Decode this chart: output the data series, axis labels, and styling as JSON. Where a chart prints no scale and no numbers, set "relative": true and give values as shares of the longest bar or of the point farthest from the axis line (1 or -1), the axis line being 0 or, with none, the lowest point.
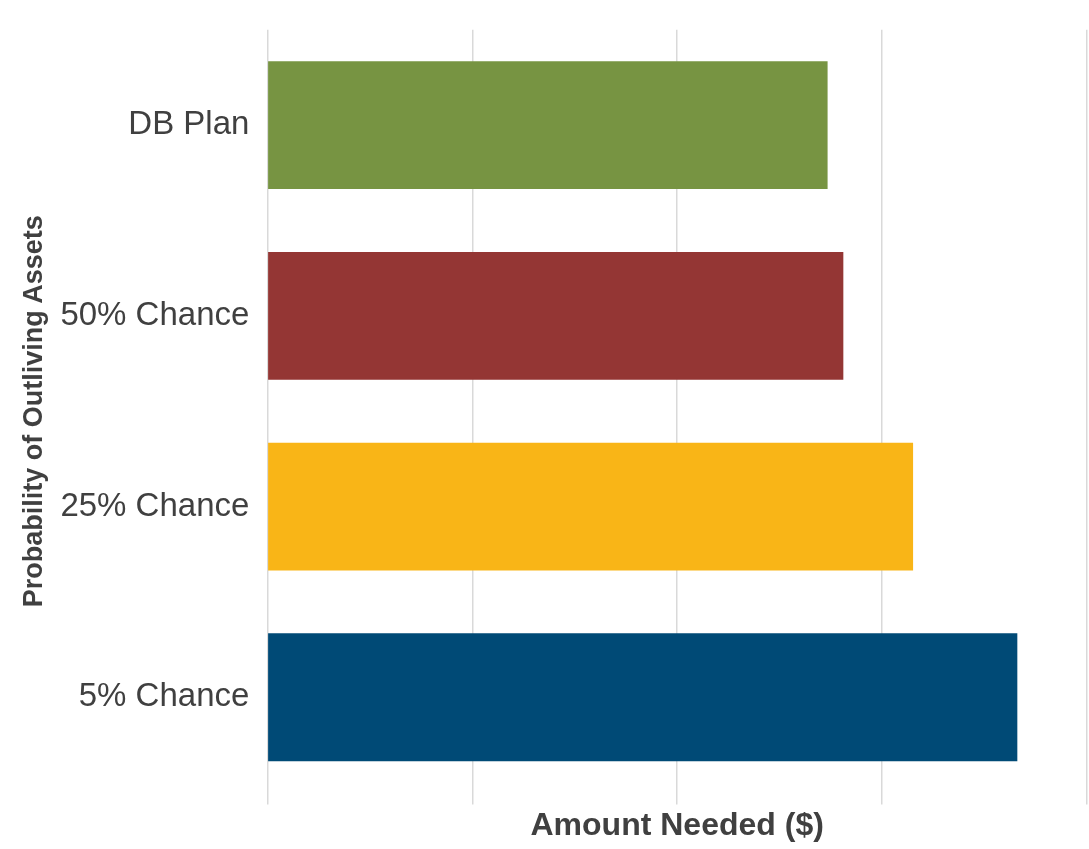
{
  "chart_data": {
    "type": "bar",
    "orientation": "horizontal",
    "relative": true,
    "categories": [
      "DB Plan",
      "50% Chance",
      "25% Chance",
      "5% Chance"
    ],
    "values": [
      0.747,
      0.768,
      0.861,
      1
    ],
    "colors": [
      "#779442",
      "#943634",
      "#f9b517",
      "#004a76"
    ],
    "xlabel": "Amount Needed ($)",
    "ylabel": "Probability of Outliving Assets",
    "grid": "x",
    "legend": false
  }
}
